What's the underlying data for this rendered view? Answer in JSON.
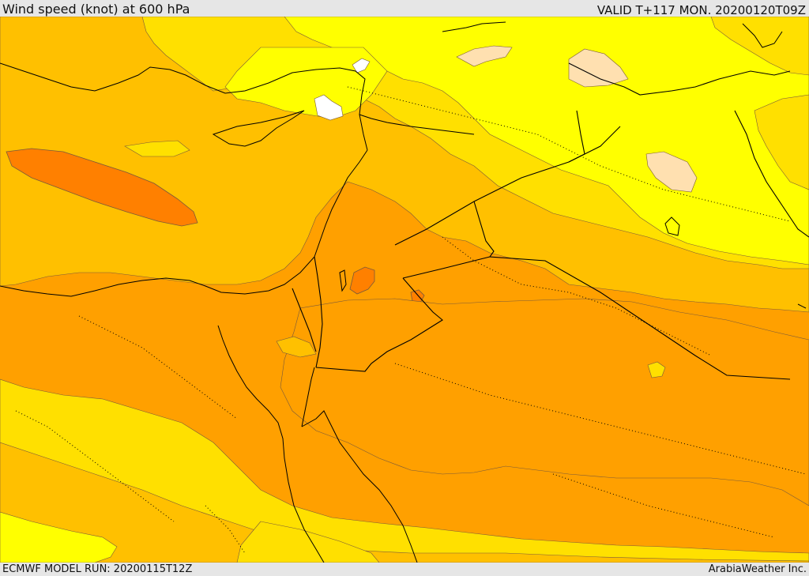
{
  "header": {
    "title": "Wind speed (knot) at 600 hPa",
    "valid": "VALID T+117 MON. 20200120T09Z"
  },
  "footer": {
    "model_run": "ECMWF MODEL RUN: 20200115T12Z",
    "credit": "ArabiaWeather Inc."
  },
  "map": {
    "variable": "wind speed",
    "units": "knot",
    "level_hpa": 600,
    "region": "Eastern Mediterranean / Middle East",
    "shading_colors": {
      "band_1": "#ffff00",
      "band_2": "#ffe000",
      "band_3": "#ffc000",
      "band_4": "#ffa000",
      "band_5": "#ff8000",
      "lightest": "#ffe0b0",
      "calm": "#ffffff"
    },
    "line_colors": {
      "coastline": "#000000",
      "border": "#000000",
      "contour": "#7a5a3a"
    }
  }
}
